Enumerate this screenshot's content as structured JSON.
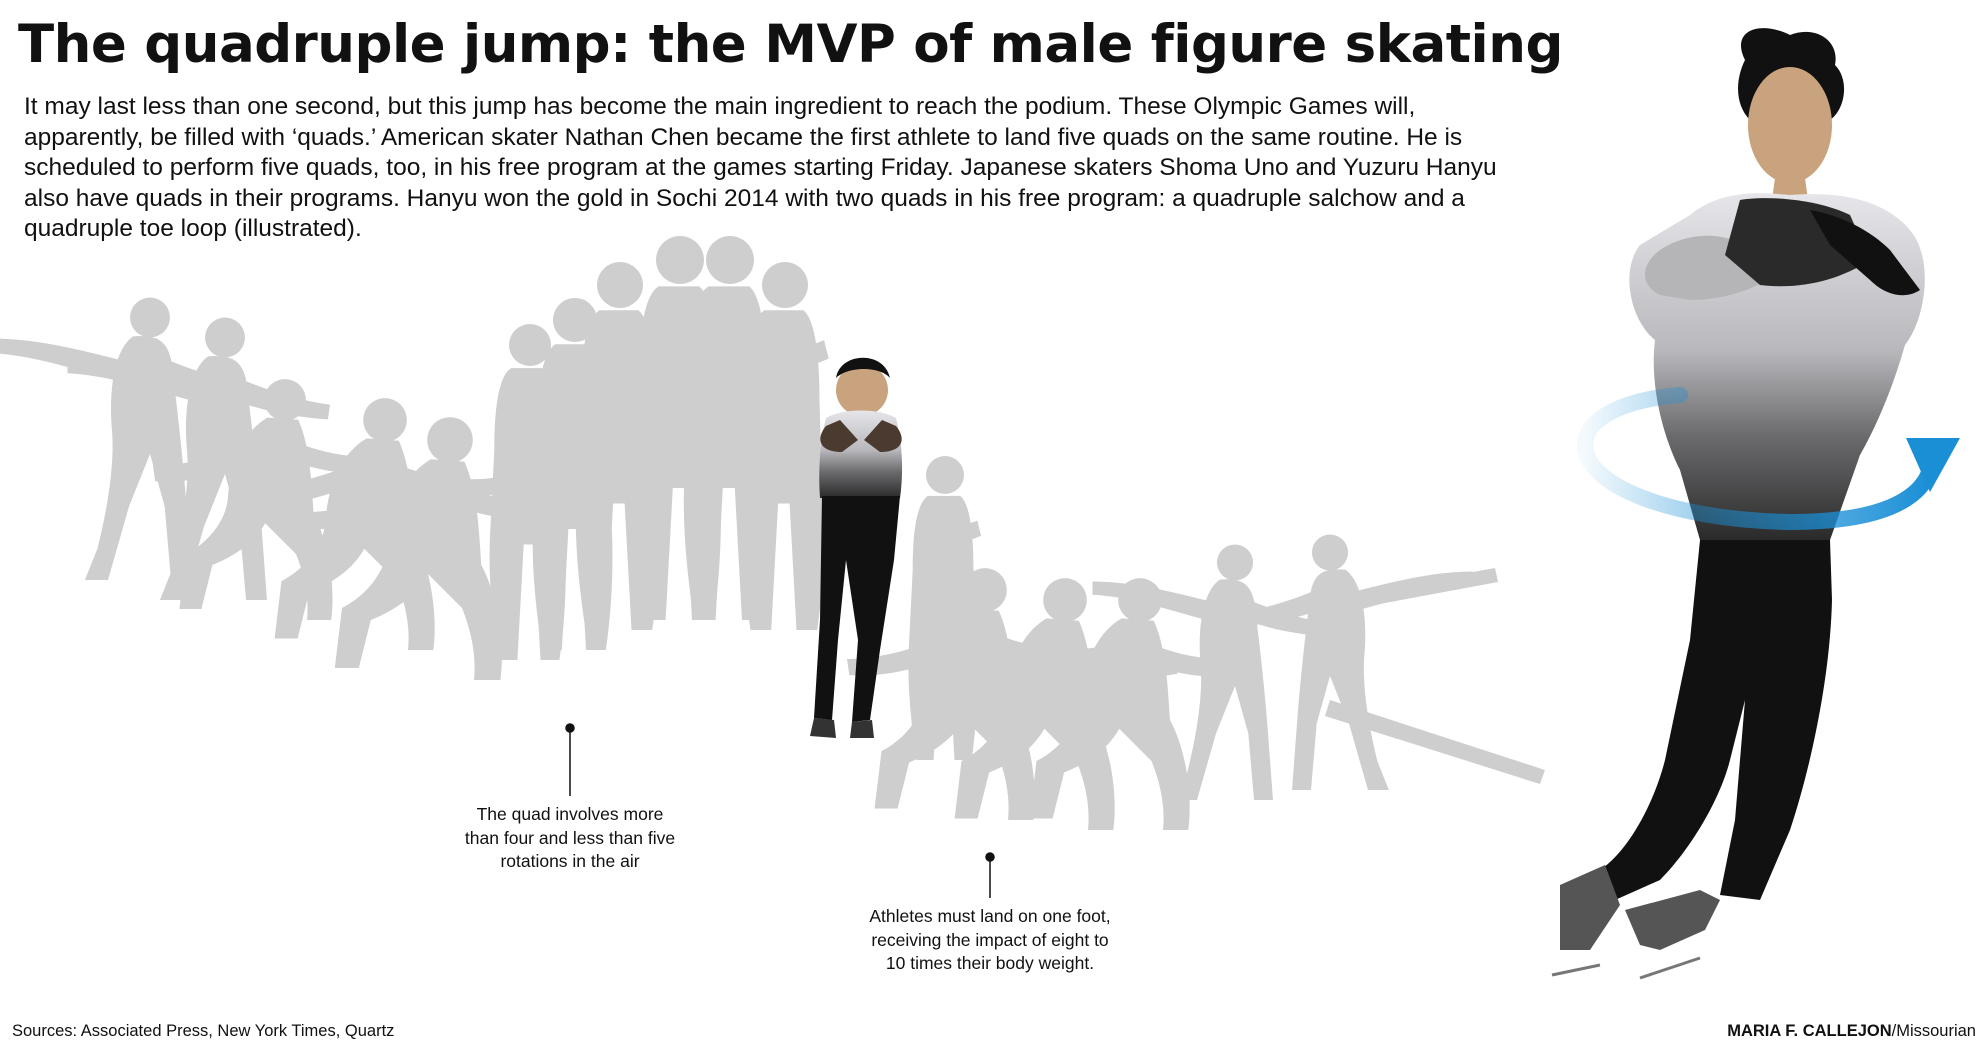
{
  "headline": "The quadruple jump: the MVP of male figure skating",
  "intro": "It may last less than one second, but this jump has become the main ingredient to reach the podium. These Olympic Games will, apparently, be filled with ‘quads.’ American skater Nathan Chen became the first athlete to land five quads on the same routine. He is scheduled to perform five quads, too, in his free program at the games starting Friday. Japanese skaters Shoma Uno and Yuzuru Hanyu also have quads in their programs. Hanyu won the gold in Sochi 2014 with two quads in his free program: a quadruple salchow and a quadruple toe loop (illustrated).",
  "callouts": {
    "rotations": "The quad involves more than four and less than five rotations in the air",
    "landing": "Athletes must land on one foot, receiving the impact of eight to 10 times their body weight."
  },
  "footer": {
    "sources": "Sources: Associated Press, New York Times, Quartz",
    "credit_name": "MARIA F. CALLEJON",
    "credit_org": "/Missourian"
  },
  "colors": {
    "silhouette": "#c8c8c8",
    "rotation_arrow": "#1a8fd6",
    "skin": "#c9a27e",
    "costume_dark": "#111111"
  },
  "icons": {
    "rotation_arrow": "circular-rotation-arrow-icon"
  }
}
